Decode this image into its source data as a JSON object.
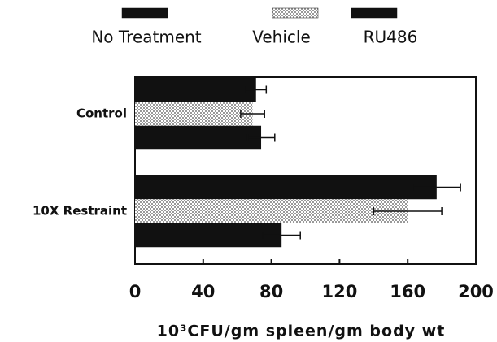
{
  "chart_data": {
    "type": "hbar",
    "xlabel": "10³CFU/gm spleen/gm body wt",
    "categories": [
      "Control",
      "10X Restraint"
    ],
    "series": [
      {
        "name": "No Treatment",
        "color": "#111111",
        "values": [
          71,
          177
        ],
        "errors": [
          6,
          14
        ]
      },
      {
        "name": "Vehicle",
        "color": "#999999",
        "pattern": "stipple",
        "values": [
          69,
          160
        ],
        "errors": [
          7,
          20
        ]
      },
      {
        "name": "RU486",
        "color": "#111111",
        "values": [
          74,
          86
        ],
        "errors": [
          8,
          11
        ]
      }
    ],
    "xlim": [
      0,
      200
    ],
    "xticks": [
      0,
      40,
      80,
      120,
      160,
      200
    ],
    "grid": false
  }
}
